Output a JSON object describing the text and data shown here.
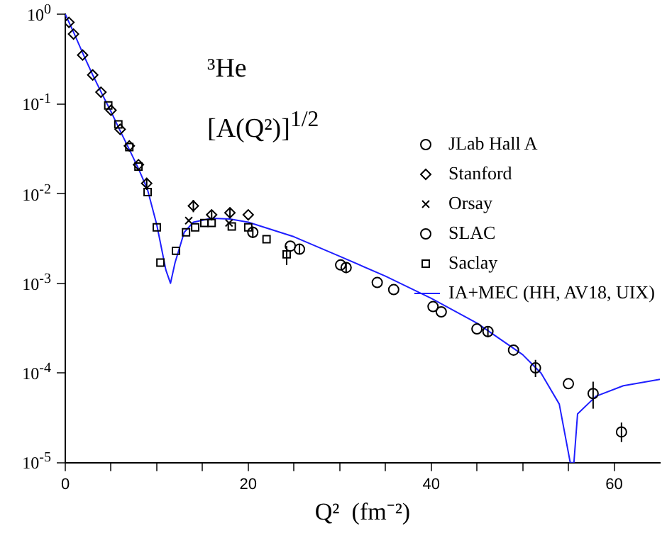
{
  "chart_data": {
    "type": "scatter",
    "xlabel": "Q²  (fm⁻²)",
    "annotations": [
      "³He",
      "[A(Q²)]$^{1/2}$"
    ],
    "xlim": [
      0,
      65
    ],
    "xticks": [
      0,
      {
        "value": 5,
        "label": null
      },
      {
        "value": 10,
        "label": null
      },
      {
        "value": 15,
        "label": null
      },
      20,
      {
        "value": 25,
        "label": null
      },
      {
        "value": 30,
        "label": null
      },
      {
        "value": 35,
        "label": null
      },
      40,
      {
        "value": 45,
        "label": null
      },
      {
        "value": 50,
        "label": null
      },
      {
        "value": 55,
        "label": null
      },
      60
    ],
    "ylim": [
      1e-05,
      1
    ],
    "yticks": [
      {
        "value": 1e-05,
        "label": "10$^{-5}$"
      },
      {
        "value": 0.0001,
        "label": "10$^{-4}$"
      },
      {
        "value": 0.001,
        "label": "10$^{-3}$"
      },
      {
        "value": 0.01,
        "label": "10$^{-2}$"
      },
      {
        "value": 0.1,
        "label": "10$^{-1}$"
      },
      {
        "value": 1,
        "label": "10$^{0}$"
      }
    ],
    "log": "y",
    "grid": false,
    "legend": "top right",
    "series": [
      {
        "name": "JLab Hall A",
        "color": "#000000",
        "marker": "circle",
        "x": [
          24.6,
          30.1,
          34.1,
          40.2,
          45.0,
          49.0,
          55.0,
          60.8
        ],
        "values": [
          0.0026,
          0.0016,
          0.00102,
          0.00055,
          0.00031,
          0.00018,
          7.6e-05,
          2.2e-05
        ],
        "errors": [
          null,
          null,
          null,
          null,
          null,
          null,
          null,
          [
            1.7e-05,
            2.8e-05
          ]
        ]
      },
      {
        "name": "Stanford",
        "color": "#000000",
        "marker": "diamond",
        "x": [
          0.4,
          0.9,
          1.9,
          3.0,
          3.9,
          5.0,
          6.0,
          7.0,
          8.0,
          8.9,
          14.0,
          16.0,
          18.0,
          20.0
        ],
        "values": [
          0.81,
          0.6,
          0.35,
          0.21,
          0.135,
          0.085,
          0.052,
          0.034,
          0.021,
          0.013,
          0.0073,
          0.0058,
          0.0061,
          0.0058
        ],
        "errors": [
          null,
          null,
          null,
          null,
          null,
          null,
          null,
          null,
          null,
          [
            0.011,
            0.015
          ],
          [
            0.0062,
            0.0085
          ],
          [
            0.0052,
            0.0064
          ],
          [
            0.0054,
            0.0068
          ],
          null
        ]
      },
      {
        "name": "Orsay",
        "color": "#000000",
        "marker": "cross",
        "x": [
          13.5,
          17.9
        ],
        "values": [
          0.005,
          0.0047
        ]
      },
      {
        "name": "SLAC",
        "color": "#000000",
        "marker": "circle",
        "x": [
          20.5,
          25.6,
          30.7,
          35.9,
          41.1,
          46.2,
          51.4,
          57.7
        ],
        "values": [
          0.0037,
          0.0024,
          0.0015,
          0.00085,
          0.00048,
          0.00029,
          0.000114,
          5.9e-05
        ],
        "errors": [
          [
            0.0032,
            0.0043
          ],
          [
            0.0021,
            0.0027
          ],
          [
            0.0013,
            0.0017
          ],
          null,
          null,
          [
            0.00025,
            0.00033
          ],
          [
            9e-05,
            0.00014
          ],
          [
            4e-05,
            8e-05
          ]
        ]
      },
      {
        "name": "Saclay",
        "color": "#000000",
        "marker": "square",
        "x": [
          4.7,
          5.8,
          7.0,
          8.0,
          9.0,
          10.0,
          10.4,
          12.1,
          13.2,
          14.2,
          15.2,
          16.0,
          18.2,
          20.0,
          22.0,
          24.2
        ],
        "values": [
          0.096,
          0.059,
          0.033,
          0.02,
          0.0104,
          0.0042,
          0.0017,
          0.0023,
          0.0037,
          0.0042,
          0.0047,
          0.0047,
          0.0043,
          0.0042,
          0.0031,
          0.0021
        ],
        "errors": [
          null,
          null,
          null,
          null,
          null,
          null,
          null,
          null,
          null,
          null,
          null,
          null,
          null,
          null,
          null,
          [
            0.0016,
            0.0026
          ]
        ]
      },
      {
        "name": "IA+MEC (HH, AV18, UIX)",
        "type": "line",
        "color": "#1f1fff",
        "marker": "none",
        "x": [
          0,
          1,
          2,
          3,
          4,
          5,
          6,
          7,
          8,
          9,
          10,
          11,
          11.5,
          12,
          13,
          14,
          16,
          18,
          20,
          25,
          30,
          35,
          40,
          45,
          50,
          52,
          54,
          55.2,
          55.6,
          56,
          58,
          61,
          65
        ],
        "values": [
          1.0,
          0.6,
          0.35,
          0.21,
          0.13,
          0.082,
          0.05,
          0.031,
          0.019,
          0.011,
          0.0045,
          0.0014,
          0.001,
          0.0017,
          0.0037,
          0.0048,
          0.0053,
          0.0052,
          0.0048,
          0.0033,
          0.002,
          0.0012,
          0.00068,
          0.00036,
          0.00016,
          0.0001,
          4.5e-05,
          1e-05,
          1e-05,
          3.5e-05,
          5.5e-05,
          7.2e-05,
          8.5e-05
        ]
      }
    ]
  }
}
